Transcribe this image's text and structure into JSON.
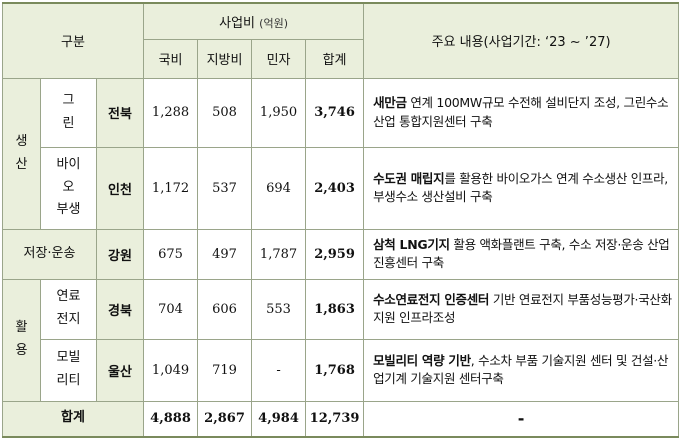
{
  "headers": {
    "category": "구분",
    "budget": "사업비",
    "budget_unit": "(억원)",
    "cols": [
      "국비",
      "지방비",
      "민자",
      "합계"
    ],
    "content": "주요 내용(사업기간: ‘23 ~ ’27)"
  },
  "groups": {
    "production": "생\n산",
    "storage": "저장·운송",
    "utilization": "활\n용"
  },
  "rows": [
    {
      "subcat": "그\n린",
      "region": "전북",
      "national": "1,288",
      "local": "508",
      "private": "1,950",
      "total": "3,746",
      "desc_bold": "새만금",
      "desc_rest": " 연계 100MW규모 수전해 설비단지 조성, 그린수소 산업 통합지원센터 구축"
    },
    {
      "subcat": "바이\n오\n부생",
      "region": "인천",
      "national": "1,172",
      "local": "537",
      "private": "694",
      "total": "2,403",
      "desc_bold": "수도권 매립지",
      "desc_rest": "를 활용한 바이오가스 연계 수소생산 인프라, 부생수소 생산설비 구축"
    },
    {
      "subcat": "",
      "region": "강원",
      "national": "675",
      "local": "497",
      "private": "1,787",
      "total": "2,959",
      "desc_bold": "삼척 LNG기지",
      "desc_rest": " 활용 액화플랜트 구축, 수소 저장·운송 산업 진흥센터 구축"
    },
    {
      "subcat": "연료\n전지",
      "region": "경북",
      "national": "704",
      "local": "606",
      "private": "553",
      "total": "1,863",
      "desc_bold": "수소연료전지 인증센터",
      "desc_rest": " 기반 연료전지 부품성능평가·국산화 지원 인프라조성"
    },
    {
      "subcat": "모빌\n리티",
      "region": "울산",
      "national": "1,049",
      "local": "719",
      "private": "-",
      "total": "1,768",
      "desc_bold": "모빌리티 역량 기반",
      "desc_rest": ", 수소차 부품 기술지원 센터 및 건설·산업기계 기술지원 센터구축"
    }
  ],
  "footer": {
    "label": "합계",
    "national": "4,888",
    "local": "2,867",
    "private": "4,984",
    "total": "12,739",
    "content": "-"
  }
}
